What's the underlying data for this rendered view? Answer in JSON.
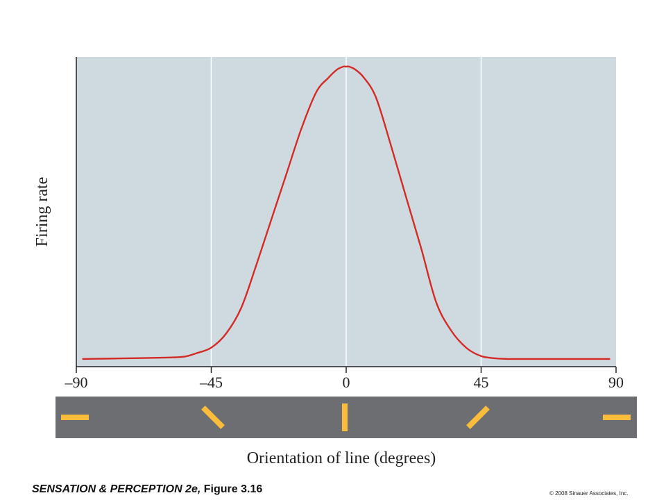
{
  "chart_data": {
    "type": "line",
    "xlabel": "Orientation of line (degrees)",
    "ylabel": "Firing rate",
    "xlim": [
      -90,
      90
    ],
    "ylim": [
      0,
      1
    ],
    "x_ticks": [
      "–90",
      "–45",
      "0",
      "45",
      "90"
    ],
    "x_tick_values": [
      -90,
      -45,
      0,
      45,
      90
    ],
    "grid": true,
    "plot_background": "#cfdae0",
    "line_color": "#d42a25",
    "series": [
      {
        "x": [
          -88,
          -75,
          -60,
          -54,
          -50,
          -45,
          -40,
          -35,
          -30,
          -25,
          -20,
          -15,
          -10,
          -6,
          -3,
          -1,
          0,
          1,
          3,
          6,
          10,
          15,
          20,
          25,
          30,
          35,
          40,
          45,
          50,
          54,
          60,
          75,
          88
        ],
        "y": [
          0.01,
          0.012,
          0.015,
          0.018,
          0.03,
          0.05,
          0.1,
          0.19,
          0.34,
          0.5,
          0.66,
          0.82,
          0.95,
          1.0,
          1.03,
          1.04,
          1.04,
          1.04,
          1.03,
          1.0,
          0.93,
          0.76,
          0.58,
          0.4,
          0.21,
          0.11,
          0.05,
          0.02,
          0.012,
          0.01,
          0.01,
          0.01,
          0.01
        ]
      }
    ],
    "orientation_bar": {
      "background": "#6d6e71",
      "bar_color": "#f9bc3b",
      "orientations": [
        -90,
        -45,
        0,
        45,
        90
      ]
    }
  },
  "footer": {
    "book_title": "SENSATION & PERCEPTION 2e,",
    "figure": " Figure 3.16",
    "copyright": "© 2008 Sinauer Associates, Inc."
  }
}
